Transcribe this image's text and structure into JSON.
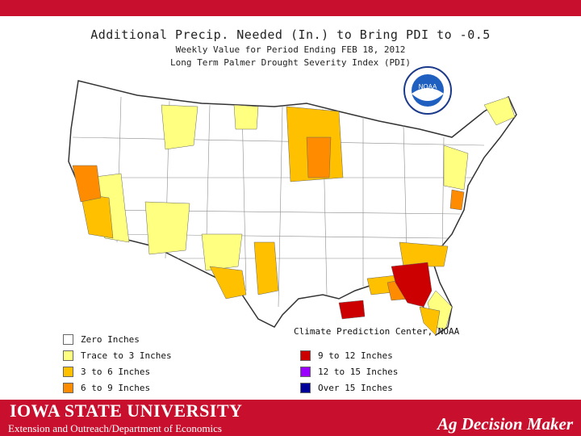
{
  "map": {
    "title": "Additional Precip. Needed (In.) to Bring PDI to -0.5",
    "subtitle1": "Weekly Value for Period Ending FEB 18, 2012",
    "subtitle2": "Long Term Palmer Drought Severity Index (PDI)",
    "noaa_label": "NOAA",
    "credit": "Climate Prediction Center, NOAA"
  },
  "legend": {
    "items": [
      {
        "label": "Zero Inches",
        "color": "#ffffff"
      },
      {
        "label": "Trace to 3 Inches",
        "color": "#ffff80"
      },
      {
        "label": "3 to 6 Inches",
        "color": "#ffc000"
      },
      {
        "label": "6 to 9 Inches",
        "color": "#ff8c00"
      },
      {
        "label": "9 to 12 Inches",
        "color": "#cc0000"
      },
      {
        "label": "12 to 15 Inches",
        "color": "#9900ff"
      },
      {
        "label": "Over 15 Inches",
        "color": "#000099"
      }
    ]
  },
  "footer": {
    "university": "IOWA STATE UNIVERSITY",
    "department": "Extension and Outreach/Department of Economics",
    "brand": "Ag Decision Maker"
  },
  "colors": {
    "brand_red": "#c8102e",
    "state_line": "#333333",
    "division_line": "#8c8c8c"
  }
}
